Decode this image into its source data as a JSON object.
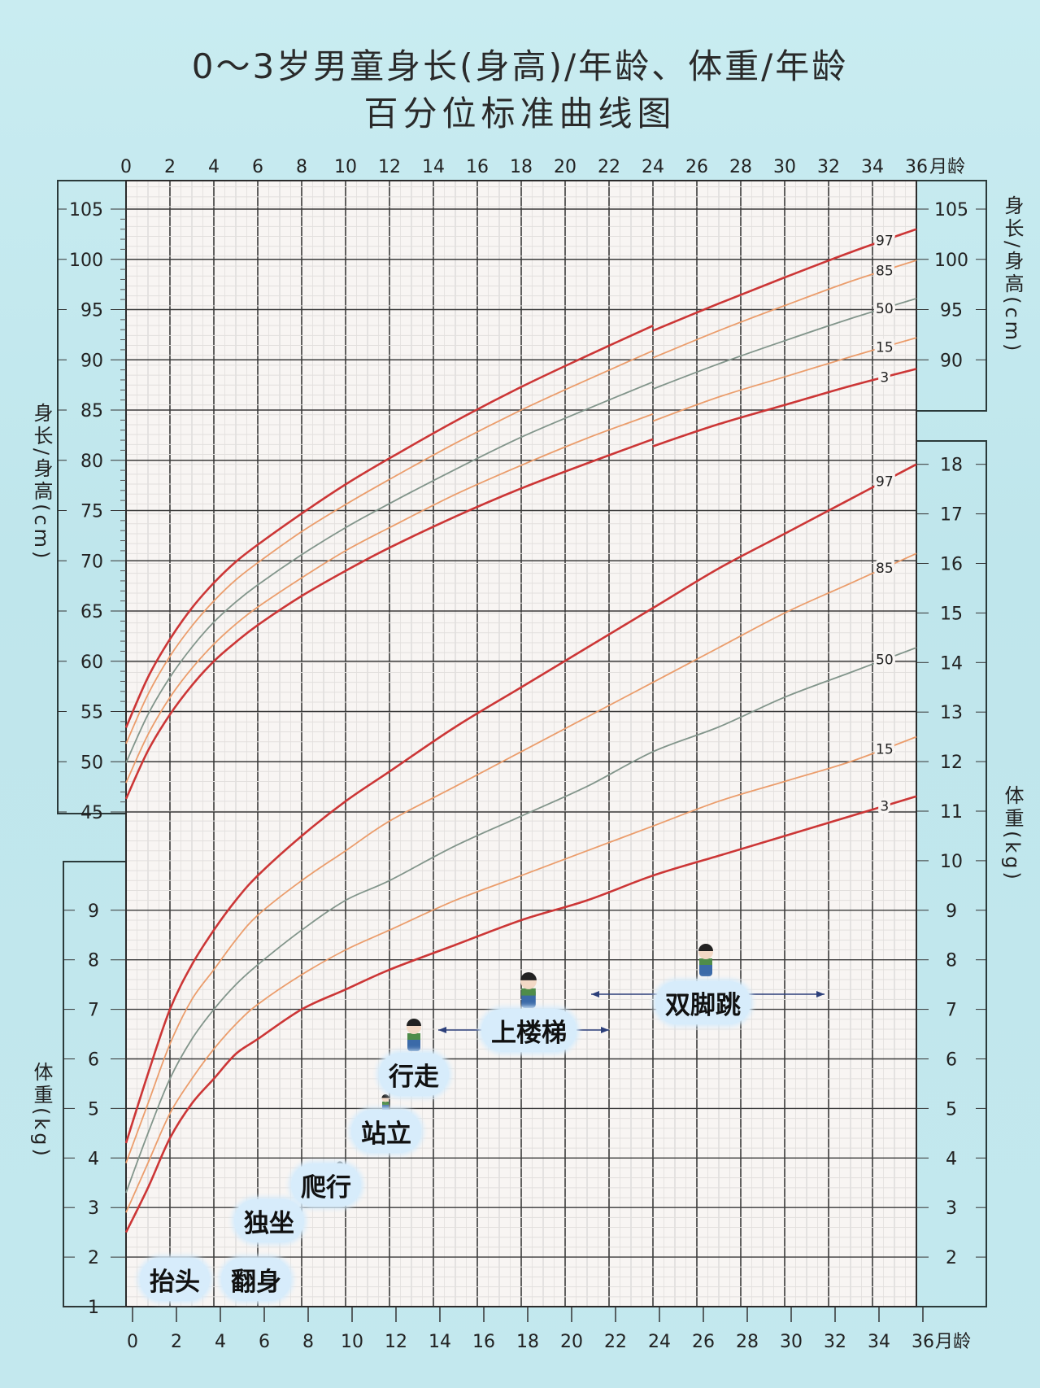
{
  "title": {
    "line1": "0～3岁男童身长(身高)/年龄、体重/年龄",
    "line2": "百分位标准曲线图"
  },
  "side_labels": {
    "height_left": "身长/身高(cm)",
    "height_right": "身长/身高(cm)",
    "weight_left": "体重(kg)",
    "weight_right": "体重(kg)"
  },
  "chart_data": {
    "type": "line",
    "title": "0～3岁男童身长(身高)/年龄、体重/年龄 百分位标准曲线图",
    "xlabel": "月龄",
    "xlim": [
      0,
      36
    ],
    "x_ticks": [
      0,
      2,
      4,
      6,
      8,
      10,
      12,
      14,
      16,
      18,
      20,
      22,
      24,
      26,
      28,
      30,
      32,
      34,
      36
    ],
    "grid": true,
    "percentiles": [
      "3",
      "15",
      "50",
      "85",
      "97"
    ],
    "colors": {
      "3": "#cc3636",
      "15": "#eb9d6c",
      "50": "#82958b",
      "85": "#eb9d6c",
      "97": "#cc3636"
    },
    "height": {
      "ylabel": "身长/身高(cm)",
      "ylim": [
        45,
        105
      ],
      "left_ticks": [
        45,
        50,
        55,
        60,
        65,
        70,
        75,
        80,
        85,
        90,
        95,
        100,
        105
      ],
      "right_ticks": [
        90,
        95,
        100,
        105
      ],
      "segments": [
        {
          "name": "身长",
          "x": [
            0,
            1,
            2,
            3,
            4,
            5,
            6,
            8,
            10,
            12,
            15,
            18,
            21,
            24
          ],
          "series": {
            "3": [
              46.3,
              51.1,
              54.7,
              57.6,
              60.0,
              61.9,
              63.6,
              66.5,
              69.0,
              71.3,
              74.4,
              77.2,
              79.7,
              82.1
            ],
            "15": [
              47.9,
              52.7,
              56.4,
              59.3,
              61.7,
              63.7,
              65.4,
              68.3,
              71.0,
              73.3,
              76.6,
              79.5,
              82.2,
              84.6
            ],
            "50": [
              49.9,
              54.7,
              58.4,
              61.4,
              63.9,
              65.9,
              67.6,
              70.6,
              73.3,
              75.7,
              79.1,
              82.3,
              85.1,
              87.8
            ],
            "85": [
              51.8,
              56.7,
              60.5,
              63.5,
              66.0,
              68.1,
              69.8,
              72.9,
              75.6,
              78.1,
              81.7,
              85.0,
              88.0,
              90.9
            ],
            "97": [
              53.4,
              58.4,
              62.2,
              65.3,
              67.8,
              69.9,
              71.6,
              74.7,
              77.6,
              80.2,
              83.9,
              87.3,
              90.4,
              93.4
            ]
          }
        },
        {
          "name": "身高",
          "x": [
            24,
            27,
            30,
            33,
            36
          ],
          "series": {
            "3": [
              81.4,
              83.6,
              85.5,
              87.4,
              89.1
            ],
            "15": [
              83.9,
              86.3,
              88.3,
              90.3,
              92.2
            ],
            "50": [
              87.1,
              89.6,
              91.9,
              94.1,
              96.1
            ],
            "85": [
              90.2,
              92.9,
              95.4,
              97.8,
              99.9
            ],
            "97": [
              92.9,
              95.6,
              98.2,
              100.7,
              103.0
            ]
          }
        }
      ]
    },
    "weight": {
      "ylabel": "体重(kg)",
      "ylim": [
        1,
        18
      ],
      "left_ticks": [
        1,
        2,
        3,
        4,
        5,
        6,
        7,
        8,
        9
      ],
      "right_ticks": [
        2,
        3,
        4,
        5,
        6,
        7,
        8,
        9,
        10,
        11,
        12,
        13,
        14,
        15,
        16,
        17,
        18
      ],
      "x": [
        0,
        1,
        2,
        3,
        4,
        5,
        6,
        8,
        10,
        12,
        15,
        18,
        21,
        24,
        27,
        30,
        33,
        36
      ],
      "series": {
        "3": [
          2.5,
          3.4,
          4.4,
          5.1,
          5.6,
          6.1,
          6.4,
          7.0,
          7.4,
          7.8,
          8.3,
          8.8,
          9.2,
          9.7,
          10.1,
          10.5,
          10.9,
          11.3
        ],
        "15": [
          2.9,
          3.9,
          4.9,
          5.6,
          6.2,
          6.7,
          7.1,
          7.7,
          8.2,
          8.6,
          9.2,
          9.7,
          10.2,
          10.7,
          11.2,
          11.6,
          12.0,
          12.5
        ],
        "50": [
          3.3,
          4.5,
          5.6,
          6.4,
          7.0,
          7.5,
          7.9,
          8.6,
          9.2,
          9.6,
          10.3,
          10.9,
          11.5,
          12.2,
          12.7,
          13.3,
          13.8,
          14.3
        ],
        "85": [
          3.9,
          5.1,
          6.3,
          7.2,
          7.8,
          8.4,
          8.9,
          9.6,
          10.2,
          10.8,
          11.5,
          12.2,
          12.9,
          13.6,
          14.3,
          15.0,
          15.6,
          16.2
        ],
        "97": [
          4.3,
          5.7,
          7.0,
          7.9,
          8.6,
          9.2,
          9.7,
          10.5,
          11.2,
          11.8,
          12.7,
          13.5,
          14.3,
          15.1,
          15.9,
          16.6,
          17.3,
          18.0
        ]
      }
    }
  },
  "milestones": {
    "head_up": "抬头",
    "roll_over": "翻身",
    "sit_alone": "独坐",
    "crawl": "爬行",
    "stand": "站立",
    "walk": "行走",
    "climb_stairs": "上楼梯",
    "jump": "双脚跳"
  }
}
